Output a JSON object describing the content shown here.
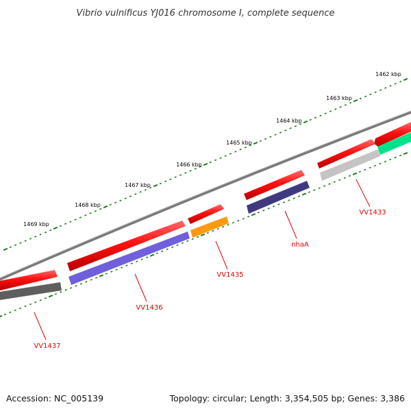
{
  "title": "Vibrio vulnificus YJ016 chromosome I, complete sequence",
  "footer": {
    "accession": "Accession: NC_005139",
    "stats": "Topology: circular; Length: 3,354,505 bp; Genes: 3,386"
  },
  "colors": {
    "backbone": "#8a8a8a",
    "tick": "#1e7a1e",
    "gene_label": "#e00000",
    "cds": "#ff1010",
    "cds_dark": "#c00000"
  },
  "kbp_labels": [
    "1462 kbp",
    "1463 kbp",
    "1464 kbp",
    "1465 kbp",
    "1466 kbp",
    "1467 kbp",
    "1468 kbp",
    "1469 kbp"
  ],
  "gene_labels": [
    "VV1433",
    "nhaA",
    "VV1435",
    "VV1436",
    "VV1437"
  ],
  "features": [
    {
      "track": "cds",
      "strand": "forward",
      "color": "#ff1010"
    },
    {
      "track": "cds",
      "strand": "forward",
      "color": "#ff1010"
    },
    {
      "track": "cds",
      "strand": "forward",
      "color": "#ff1010"
    },
    {
      "track": "cds",
      "strand": "forward",
      "color": "#ff1010"
    },
    {
      "track": "cds",
      "strand": "forward",
      "color": "#ff1010"
    },
    {
      "track": "cds",
      "strand": "forward",
      "color": "#ff1010"
    },
    {
      "track": "cog",
      "color": "#00e28a"
    },
    {
      "track": "cog",
      "color": "#c4c4c4"
    },
    {
      "track": "cog",
      "color": "#3f3a80"
    },
    {
      "track": "cog",
      "color": "#ff9a10"
    },
    {
      "track": "cog",
      "color": "#7060dc"
    },
    {
      "track": "cog",
      "color": "#5e5e5e"
    }
  ]
}
